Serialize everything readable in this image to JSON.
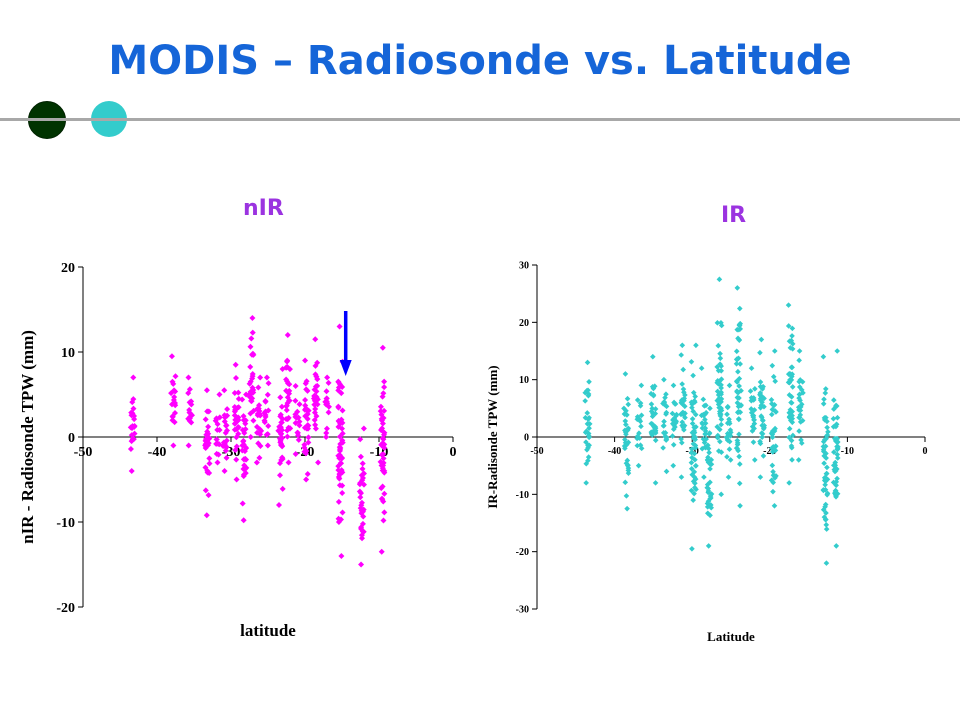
{
  "slide": {
    "title": "MODIS – Radiosonde vs. Latitude",
    "accent_colors": [
      "#003300",
      "#33cccc"
    ],
    "title_color": "#1565d8"
  },
  "panels": {
    "left_label": "nIR",
    "right_label": "IR"
  },
  "chart_data": [
    {
      "type": "scatter",
      "title": "",
      "xlabel": "latitude",
      "ylabel": "nIR - Radiosonde TPW (mm)",
      "xlim": [
        -50,
        0
      ],
      "ylim": [
        -20,
        20
      ],
      "xticks": [
        -50,
        -40,
        -30,
        -20,
        -10,
        0
      ],
      "yticks": [
        -20,
        -10,
        0,
        10,
        20
      ],
      "marker_color": "#ff00ff",
      "grid": false,
      "annotation": "blue down arrow at latitude -16",
      "columns": [
        {
          "x": -43.3,
          "min": -4,
          "max": 7
        },
        {
          "x": -37.8,
          "min": -1,
          "max": 9.5
        },
        {
          "x": -35.5,
          "min": -1,
          "max": 7
        },
        {
          "x": -33.2,
          "min": -9.2,
          "max": 5.5
        },
        {
          "x": -31.8,
          "min": -3,
          "max": 5
        },
        {
          "x": -30.8,
          "min": -4,
          "max": 5.5
        },
        {
          "x": -29.2,
          "min": -5,
          "max": 8.5
        },
        {
          "x": -28.2,
          "min": -9.8,
          "max": 5
        },
        {
          "x": -27.2,
          "min": 0,
          "max": 14
        },
        {
          "x": -26.2,
          "min": -3,
          "max": 7
        },
        {
          "x": -25.2,
          "min": -1,
          "max": 7
        },
        {
          "x": -23.3,
          "min": -8,
          "max": 8
        },
        {
          "x": -22.3,
          "min": -3,
          "max": 12
        },
        {
          "x": -21.0,
          "min": -2,
          "max": 6
        },
        {
          "x": -19.8,
          "min": -5,
          "max": 9
        },
        {
          "x": -18.5,
          "min": -3,
          "max": 11.5
        },
        {
          "x": -17.0,
          "min": 0,
          "max": 7
        },
        {
          "x": -15.2,
          "min": -14,
          "max": 13
        },
        {
          "x": -12.3,
          "min": -15,
          "max": 1
        },
        {
          "x": -9.5,
          "min": -13.5,
          "max": 10.5
        }
      ]
    },
    {
      "type": "scatter",
      "title": "",
      "xlabel": "Latitude",
      "ylabel": "IR-Radisonde TPW (mm)",
      "xlim": [
        -50,
        0
      ],
      "ylim": [
        -30,
        30
      ],
      "xticks": [
        -50,
        -40,
        -30,
        -20,
        -10,
        0
      ],
      "yticks": [
        -30,
        -20,
        -10,
        0,
        10,
        20,
        30
      ],
      "marker_color": "#33cccc",
      "grid": false,
      "columns": [
        {
          "x": -43.5,
          "min": -8,
          "max": 13
        },
        {
          "x": -38.5,
          "min": -12.5,
          "max": 11
        },
        {
          "x": -36.8,
          "min": -5,
          "max": 9
        },
        {
          "x": -35.0,
          "min": -8,
          "max": 14
        },
        {
          "x": -33.5,
          "min": -6,
          "max": 10
        },
        {
          "x": -32.3,
          "min": -5,
          "max": 9
        },
        {
          "x": -31.2,
          "min": -7,
          "max": 16
        },
        {
          "x": -29.8,
          "min": -19.5,
          "max": 16
        },
        {
          "x": -28.5,
          "min": -7,
          "max": 12
        },
        {
          "x": -27.8,
          "min": -19,
          "max": 5
        },
        {
          "x": -26.5,
          "min": -10,
          "max": 27.5
        },
        {
          "x": -25.3,
          "min": -7,
          "max": 9
        },
        {
          "x": -24.0,
          "min": -12,
          "max": 26
        },
        {
          "x": -22.2,
          "min": -4,
          "max": 12
        },
        {
          "x": -21.0,
          "min": -7,
          "max": 17
        },
        {
          "x": -19.5,
          "min": -12,
          "max": 15
        },
        {
          "x": -17.3,
          "min": -8,
          "max": 23
        },
        {
          "x": -16.0,
          "min": -4,
          "max": 15
        },
        {
          "x": -12.8,
          "min": -22,
          "max": 14
        },
        {
          "x": -11.5,
          "min": -19,
          "max": 15
        }
      ]
    }
  ]
}
